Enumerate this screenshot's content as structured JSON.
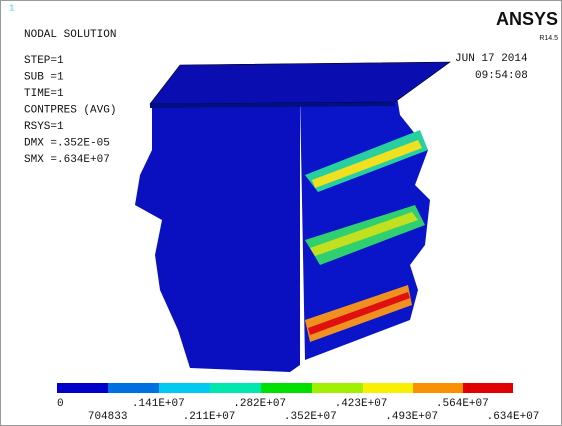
{
  "window_number": "1",
  "header": {
    "title": "NODAL SOLUTION",
    "logo": "ANSYS",
    "version": "R14.5",
    "date": "JUN 17 2014",
    "time": "09:54:08"
  },
  "info": [
    "STEP=1",
    "SUB =1",
    "TIME=1",
    "CONTPRES (AVG)",
    "RSYS=1",
    "DMX =.352E-05",
    "SMX =.634E+07"
  ],
  "legend": {
    "labels_top": [
      "0",
      ".141E+07",
      ".282E+07",
      ".423E+07",
      ".564E+07"
    ],
    "labels_bottom": [
      "704833",
      ".211E+07",
      ".352E+07",
      ".493E+07",
      ".634E+07"
    ]
  }
}
